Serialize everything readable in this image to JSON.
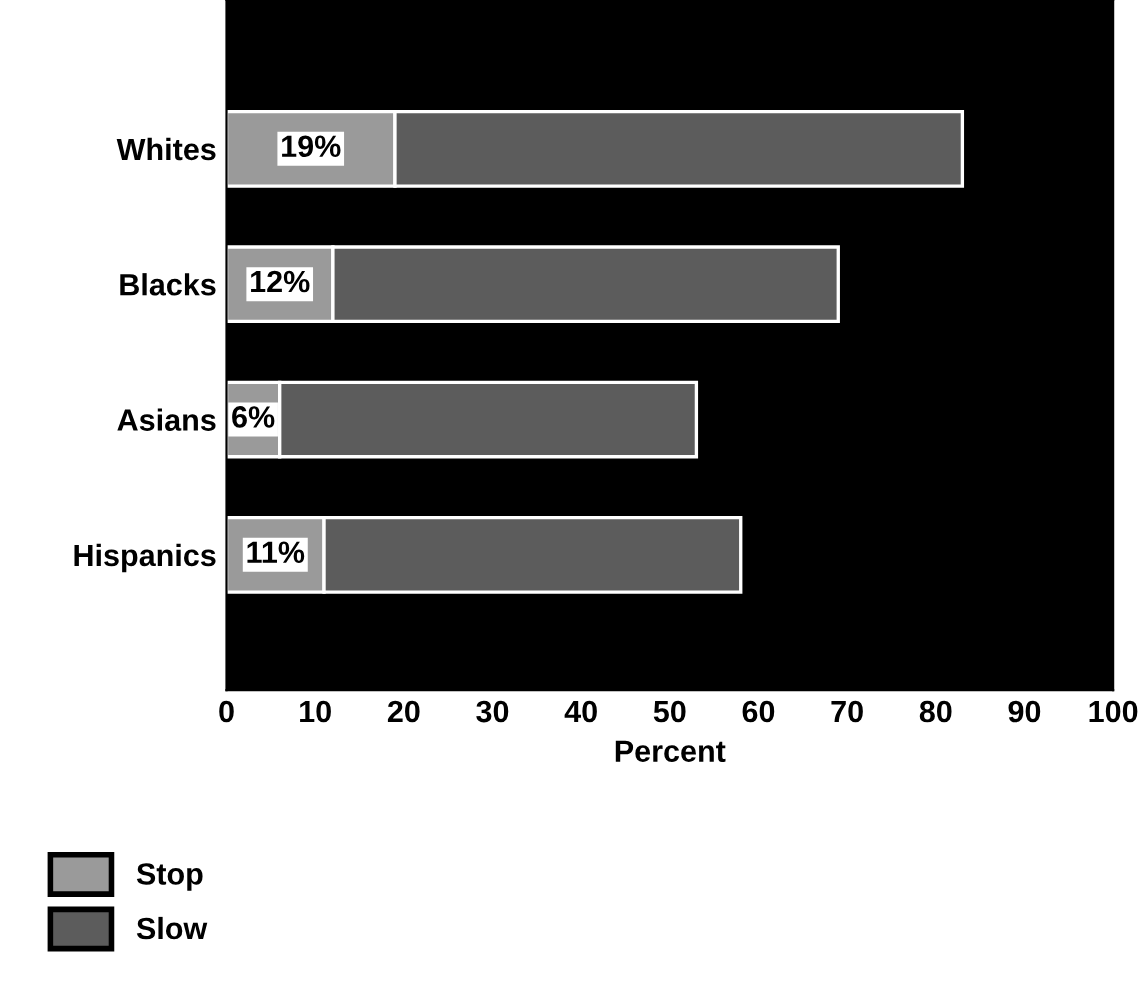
{
  "chart_data": {
    "type": "bar",
    "orientation": "horizontal",
    "stacked": true,
    "xlabel": "Percent",
    "categories": [
      "Whites",
      "Blacks",
      "Asians",
      "Hispanics"
    ],
    "series": [
      {
        "name": "Stop",
        "color": "#9a9a9a",
        "values": [
          19,
          12,
          6,
          11
        ],
        "value_labels": [
          "19%",
          "12%",
          "6%",
          "11%"
        ]
      },
      {
        "name": "Slow",
        "color": "#5c5c5c",
        "values": [
          64,
          57,
          47,
          47
        ]
      }
    ],
    "xlim": [
      0,
      100
    ],
    "xticks": [
      0,
      10,
      20,
      30,
      40,
      50,
      60,
      70,
      80,
      90,
      100
    ],
    "grid": false,
    "legend": "bottom left"
  }
}
